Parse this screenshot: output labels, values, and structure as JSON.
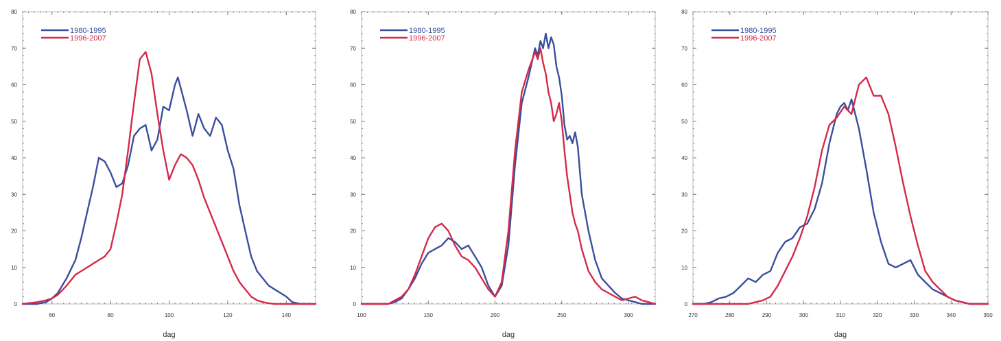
{
  "chart_data": [
    {
      "type": "line",
      "xlabel": "dag",
      "xlim": [
        50,
        150
      ],
      "ylim": [
        0,
        80
      ],
      "xticks": [
        60,
        80,
        100,
        120,
        140
      ],
      "yticks": [
        0,
        10,
        20,
        30,
        40,
        50,
        60,
        70,
        80
      ],
      "legend": "top-left",
      "series": [
        {
          "name": "1980-1995",
          "color": "#3a4f9c",
          "x": [
            50,
            55,
            58,
            60,
            62,
            65,
            68,
            70,
            72,
            74,
            76,
            78,
            80,
            82,
            84,
            86,
            88,
            90,
            92,
            94,
            96,
            98,
            100,
            102,
            103,
            104,
            106,
            108,
            110,
            112,
            114,
            116,
            118,
            120,
            122,
            124,
            126,
            128,
            130,
            132,
            134,
            136,
            138,
            140,
            142,
            145,
            150
          ],
          "y": [
            0,
            0,
            0.5,
            1.5,
            3,
            7,
            12,
            18,
            25,
            32,
            40,
            39,
            36,
            32,
            33,
            38,
            46,
            48,
            49,
            42,
            45,
            54,
            53,
            60,
            62,
            59,
            53,
            46,
            52,
            48,
            46,
            51,
            49,
            42,
            37,
            27,
            20,
            13,
            9,
            7,
            5,
            4,
            3,
            2,
            0.5,
            0,
            0
          ]
        },
        {
          "name": "1996-2007",
          "color": "#d42a4a",
          "x": [
            50,
            55,
            58,
            60,
            62,
            65,
            68,
            70,
            72,
            74,
            76,
            78,
            80,
            82,
            84,
            86,
            88,
            90,
            92,
            94,
            96,
            98,
            100,
            102,
            104,
            106,
            108,
            110,
            112,
            114,
            116,
            118,
            120,
            122,
            124,
            126,
            128,
            130,
            132,
            134,
            136,
            138,
            140,
            145,
            150
          ],
          "y": [
            0,
            0.5,
            1,
            1.5,
            2.5,
            5,
            8,
            9,
            10,
            11,
            12,
            13,
            15,
            22,
            30,
            42,
            55,
            67,
            69,
            63,
            52,
            42,
            34,
            38,
            41,
            40,
            38,
            34,
            29,
            25,
            21,
            17,
            13,
            9,
            6,
            4,
            2,
            1,
            0.5,
            0.2,
            0,
            0,
            0,
            0,
            0
          ]
        }
      ]
    },
    {
      "type": "line",
      "xlabel": "dag",
      "xlim": [
        100,
        320
      ],
      "ylim": [
        0,
        80
      ],
      "xticks": [
        100,
        150,
        200,
        250,
        300
      ],
      "yticks": [
        0,
        10,
        20,
        30,
        40,
        50,
        60,
        70,
        80
      ],
      "legend": "top-left",
      "series": [
        {
          "name": "1980-1995",
          "color": "#3a4f9c",
          "x": [
            100,
            120,
            125,
            130,
            135,
            140,
            145,
            150,
            155,
            160,
            165,
            170,
            175,
            180,
            185,
            190,
            195,
            200,
            205,
            210,
            215,
            220,
            225,
            230,
            232,
            234,
            236,
            238,
            240,
            242,
            244,
            246,
            248,
            250,
            252,
            254,
            256,
            258,
            260,
            262,
            265,
            270,
            275,
            280,
            285,
            290,
            295,
            300,
            305,
            310,
            315,
            320
          ],
          "y": [
            0,
            0,
            0.5,
            1.5,
            4,
            7,
            11,
            14,
            15,
            16,
            18,
            17,
            15,
            16,
            13,
            10,
            5,
            2,
            5,
            16,
            38,
            55,
            62,
            70,
            68,
            72,
            70,
            74,
            70,
            73,
            71,
            65,
            62,
            57,
            49,
            45,
            46,
            44,
            47,
            43,
            30,
            20,
            12,
            7,
            5,
            3,
            1.5,
            1,
            0.5,
            0,
            0,
            0
          ]
        },
        {
          "name": "1996-2007",
          "color": "#d42a4a",
          "x": [
            100,
            120,
            125,
            130,
            135,
            140,
            145,
            150,
            155,
            160,
            165,
            170,
            175,
            180,
            185,
            190,
            195,
            200,
            205,
            210,
            215,
            220,
            225,
            230,
            232,
            234,
            236,
            238,
            240,
            242,
            244,
            246,
            248,
            250,
            252,
            254,
            256,
            258,
            260,
            262,
            265,
            270,
            275,
            280,
            285,
            290,
            295,
            300,
            305,
            310,
            315,
            320
          ],
          "y": [
            0,
            0,
            1,
            2,
            4,
            8,
            13,
            18,
            21,
            22,
            20,
            16,
            13,
            12,
            10,
            7,
            4,
            2,
            6,
            20,
            42,
            58,
            64,
            69,
            67,
            70,
            66,
            63,
            58,
            55,
            50,
            52,
            55,
            50,
            42,
            35,
            30,
            25,
            22,
            20,
            15,
            9,
            6,
            4,
            3,
            2,
            1,
            1.5,
            2,
            1,
            0.5,
            0
          ]
        }
      ]
    },
    {
      "type": "line",
      "xlabel": "dag",
      "xlim": [
        270,
        350
      ],
      "ylim": [
        0,
        80
      ],
      "xticks": [
        270,
        280,
        290,
        300,
        310,
        320,
        330,
        340,
        350
      ],
      "yticks": [
        0,
        10,
        20,
        30,
        40,
        50,
        60,
        70,
        80
      ],
      "legend": "top-left",
      "series": [
        {
          "name": "1980-1995",
          "color": "#3a4f9c",
          "x": [
            270,
            273,
            275,
            277,
            279,
            281,
            283,
            285,
            287,
            289,
            291,
            293,
            295,
            297,
            299,
            301,
            303,
            305,
            307,
            309,
            310,
            311,
            312,
            313,
            314,
            315,
            317,
            319,
            321,
            323,
            325,
            327,
            329,
            331,
            333,
            335,
            337,
            339,
            341,
            343,
            345,
            350
          ],
          "y": [
            0,
            0,
            0.5,
            1.5,
            2,
            3,
            5,
            7,
            6,
            8,
            9,
            14,
            17,
            18,
            21,
            22,
            26,
            33,
            44,
            52,
            54,
            55,
            53,
            56,
            52,
            48,
            37,
            25,
            17,
            11,
            10,
            11,
            12,
            8,
            6,
            4,
            3,
            2,
            1,
            0.5,
            0,
            0
          ]
        },
        {
          "name": "1996-2007",
          "color": "#d42a4a",
          "x": [
            270,
            280,
            285,
            287,
            289,
            291,
            293,
            295,
            297,
            299,
            301,
            303,
            305,
            307,
            309,
            311,
            313,
            315,
            317,
            319,
            321,
            323,
            325,
            327,
            329,
            331,
            333,
            335,
            337,
            339,
            341,
            343,
            345,
            350
          ],
          "y": [
            0,
            0,
            0,
            0.5,
            1,
            2,
            5,
            9,
            13,
            18,
            24,
            32,
            42,
            49,
            51,
            54,
            52,
            60,
            62,
            57,
            57,
            52,
            43,
            33,
            24,
            16,
            9,
            6,
            4,
            2,
            1,
            0.5,
            0,
            0
          ]
        }
      ]
    }
  ]
}
